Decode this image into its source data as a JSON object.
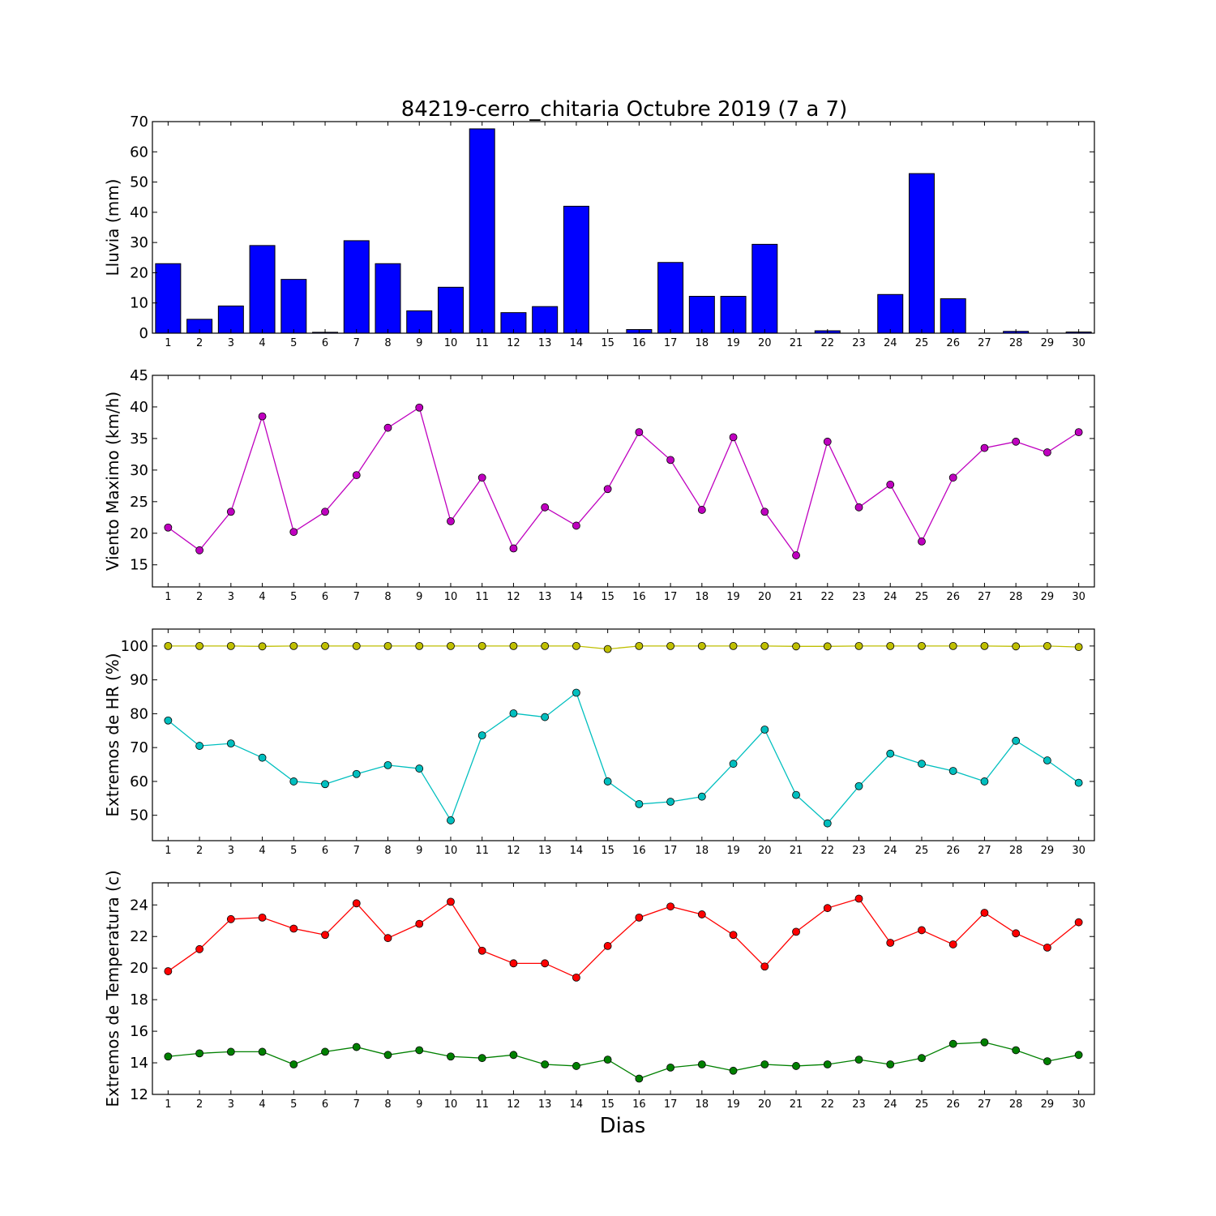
{
  "title": "84219-cerro_chitaria Octubre 2019  (7 a 7)",
  "xlabel": "Dias",
  "chart_data": [
    {
      "type": "bar",
      "ylabel": "Lluvia (mm)",
      "ylim": [
        0,
        70
      ],
      "yticks": [
        0,
        10,
        20,
        30,
        40,
        50,
        60,
        70
      ],
      "x": [
        1,
        2,
        3,
        4,
        5,
        6,
        7,
        8,
        9,
        10,
        11,
        12,
        13,
        14,
        15,
        16,
        17,
        18,
        19,
        20,
        21,
        22,
        23,
        24,
        25,
        26,
        27,
        28,
        29,
        30
      ],
      "series": [
        {
          "color": "#0000ff",
          "values": [
            23.0,
            4.6,
            9.0,
            29.0,
            17.8,
            0.3,
            30.6,
            23.0,
            7.4,
            15.2,
            67.6,
            6.8,
            8.8,
            42.0,
            0.0,
            1.2,
            23.4,
            12.2,
            12.2,
            29.4,
            0.0,
            0.8,
            0.0,
            12.8,
            52.8,
            11.4,
            0.0,
            0.6,
            0.0,
            0.4
          ]
        }
      ]
    },
    {
      "type": "line",
      "ylabel": "Viento Maximo (km/h)",
      "ylim": [
        11.5,
        45
      ],
      "yticks": [
        15,
        20,
        25,
        30,
        35,
        40,
        45
      ],
      "x": [
        1,
        2,
        3,
        4,
        5,
        6,
        7,
        8,
        9,
        10,
        11,
        12,
        13,
        14,
        15,
        16,
        17,
        18,
        19,
        20,
        21,
        22,
        23,
        24,
        25,
        26,
        27,
        28,
        29,
        30
      ],
      "series": [
        {
          "color": "#bf00bf",
          "values": [
            20.9,
            17.3,
            23.4,
            38.5,
            20.2,
            23.4,
            29.2,
            36.7,
            39.9,
            21.9,
            28.8,
            17.6,
            24.1,
            21.2,
            27.0,
            36.0,
            31.6,
            23.7,
            35.2,
            23.4,
            16.5,
            34.5,
            24.1,
            27.7,
            18.7,
            28.8,
            33.5,
            34.5,
            32.8,
            36.0
          ]
        }
      ]
    },
    {
      "type": "line",
      "ylabel": "Extremos de HR (%)",
      "ylim": [
        42.5,
        105
      ],
      "yticks": [
        50,
        60,
        70,
        80,
        90,
        100
      ],
      "x": [
        1,
        2,
        3,
        4,
        5,
        6,
        7,
        8,
        9,
        10,
        11,
        12,
        13,
        14,
        15,
        16,
        17,
        18,
        19,
        20,
        21,
        22,
        23,
        24,
        25,
        26,
        27,
        28,
        29,
        30
      ],
      "series": [
        {
          "color": "#bfbf00",
          "values": [
            100,
            100,
            100,
            99.9,
            100,
            100,
            100,
            100,
            100,
            100,
            100,
            100,
            100,
            100,
            99.1,
            100,
            100,
            100,
            100,
            100,
            99.9,
            99.9,
            100,
            100,
            100,
            100,
            100,
            99.9,
            100,
            99.7
          ]
        },
        {
          "color": "#00bfbf",
          "values": [
            78.0,
            70.5,
            71.2,
            67.0,
            60.0,
            59.2,
            62.2,
            64.8,
            63.8,
            48.5,
            73.6,
            80.1,
            79.0,
            86.2,
            60.0,
            53.3,
            54.0,
            55.5,
            65.2,
            75.3,
            56.0,
            47.6,
            58.6,
            68.2,
            65.2,
            63.1,
            60.0,
            72.0,
            66.2,
            59.6
          ]
        }
      ]
    },
    {
      "type": "line",
      "ylabel": "Extremos de Temperatura (c)",
      "ylim": [
        12,
        25.4
      ],
      "yticks": [
        12,
        14,
        16,
        18,
        20,
        22,
        24
      ],
      "x": [
        1,
        2,
        3,
        4,
        5,
        6,
        7,
        8,
        9,
        10,
        11,
        12,
        13,
        14,
        15,
        16,
        17,
        18,
        19,
        20,
        21,
        22,
        23,
        24,
        25,
        26,
        27,
        28,
        29,
        30
      ],
      "series": [
        {
          "color": "#ff0000",
          "values": [
            19.8,
            21.2,
            23.1,
            23.2,
            22.5,
            22.1,
            24.1,
            21.9,
            22.8,
            24.2,
            21.1,
            20.3,
            20.3,
            19.4,
            21.4,
            23.2,
            23.9,
            23.4,
            22.1,
            20.1,
            22.3,
            23.8,
            24.4,
            21.6,
            22.4,
            21.5,
            23.5,
            22.2,
            21.3,
            22.9
          ]
        },
        {
          "color": "#008000",
          "values": [
            14.4,
            14.6,
            14.7,
            14.7,
            13.9,
            14.7,
            15.0,
            14.5,
            14.8,
            14.4,
            14.3,
            14.5,
            13.9,
            13.8,
            14.2,
            13.0,
            13.7,
            13.9,
            13.5,
            13.9,
            13.8,
            13.9,
            14.2,
            13.9,
            14.3,
            15.2,
            15.3,
            14.8,
            14.1,
            14.5
          ]
        }
      ]
    }
  ]
}
